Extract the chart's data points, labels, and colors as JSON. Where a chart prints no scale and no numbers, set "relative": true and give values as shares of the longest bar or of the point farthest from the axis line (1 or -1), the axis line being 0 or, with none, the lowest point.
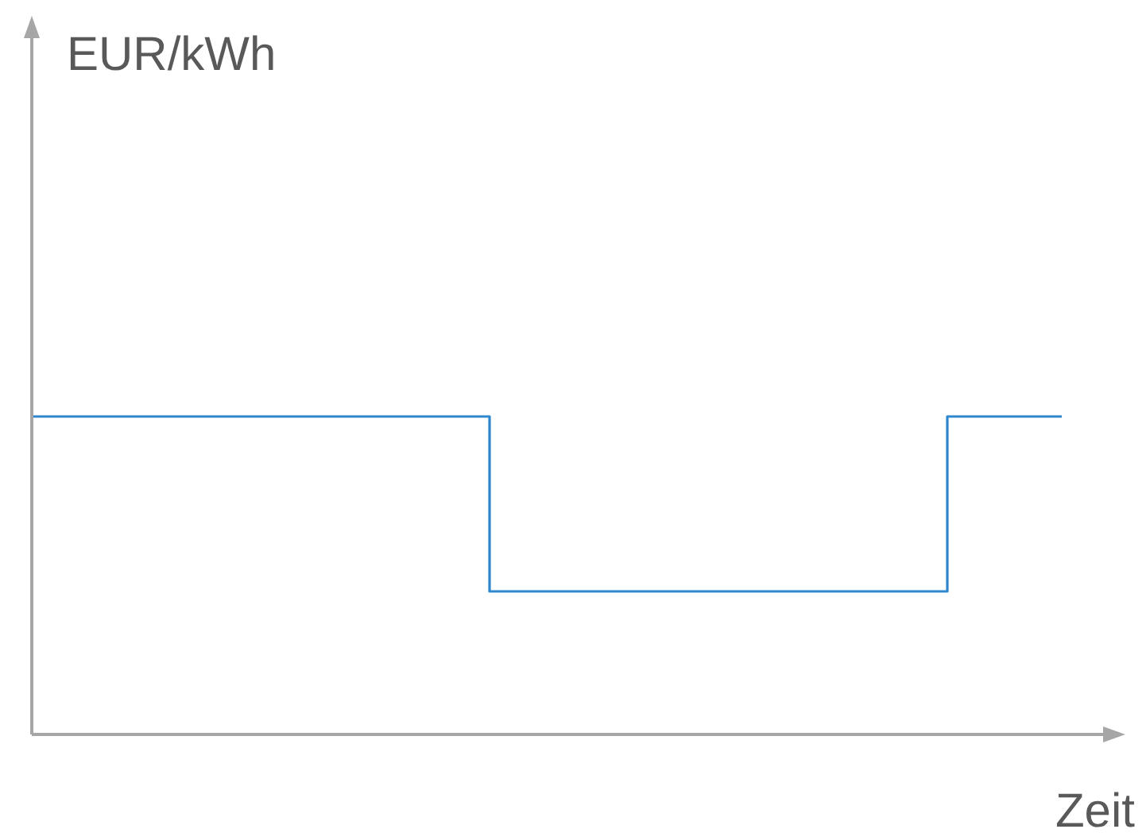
{
  "chart_data": {
    "type": "step",
    "relative": true,
    "xlabel": "Zeit",
    "annotations": [
      "EUR/kWh"
    ],
    "categories": [
      null,
      null,
      null,
      null,
      null,
      null,
      null,
      null,
      null,
      null
    ],
    "series": [
      {
        "color": "#2e86cf",
        "values": [
          1,
          1,
          1,
          1,
          0.45,
          0.45,
          0.45,
          0.45,
          1,
          1
        ]
      }
    ],
    "marker": "none",
    "line_style": "solid"
  }
}
